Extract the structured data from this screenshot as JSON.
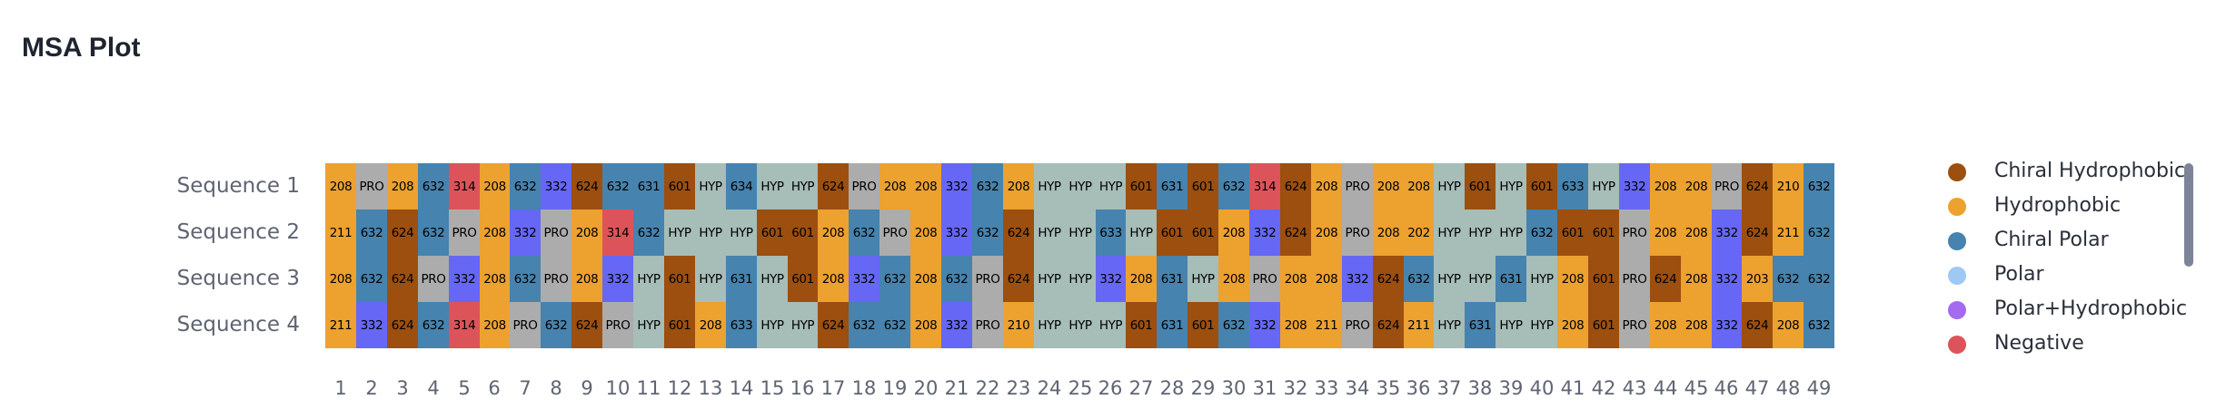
{
  "title": "MSA Plot",
  "legend": [
    {
      "label": "Chiral Hydrophobic",
      "color": "#9c4f0f",
      "icon": "circle-marker"
    },
    {
      "label": "Hydrophobic",
      "color": "#eda12f",
      "icon": "circle-marker"
    },
    {
      "label": "Chiral Polar",
      "color": "#4683ae",
      "icon": "circle-marker"
    },
    {
      "label": "Polar",
      "color": "#9ec9f5",
      "icon": "circle-marker"
    },
    {
      "label": "Polar+Hydrophobic",
      "color": "#a46af0",
      "icon": "circle-marker"
    },
    {
      "label": "Negative",
      "color": "#dc5459",
      "icon": "circle-marker"
    }
  ],
  "colors": {
    "208": "#eda12f",
    "210": "#eda12f",
    "211": "#eda12f",
    "202": "#eda12f",
    "203": "#eda12f",
    "PRO": "#acacac",
    "632": "#4683ae",
    "631": "#4683ae",
    "633": "#4683ae",
    "634": "#4683ae",
    "314": "#dc5459",
    "332": "#6667f5",
    "624": "#9c4f0f",
    "601": "#9c4f0f",
    "HYP": "#a6bdb8",
    "default": "#cccccc"
  },
  "chart_data": {
    "type": "heatmap",
    "title": "MSA Plot",
    "rows": [
      "Sequence 1",
      "Sequence 2",
      "Sequence 3",
      "Sequence 4"
    ],
    "columns": [
      1,
      2,
      3,
      4,
      5,
      6,
      7,
      8,
      9,
      10,
      11,
      12,
      13,
      14,
      15,
      16,
      17,
      18,
      19,
      20,
      21,
      22,
      23,
      24,
      25,
      26,
      27,
      28,
      29,
      30,
      31,
      32,
      33,
      34,
      35,
      36,
      37,
      38,
      39,
      40,
      41,
      42,
      43,
      44,
      45,
      46,
      47,
      48,
      49
    ],
    "values": [
      [
        "208",
        "PRO",
        "208",
        "632",
        "314",
        "208",
        "632",
        "332",
        "624",
        "632",
        "631",
        "601",
        "HYP",
        "634",
        "HYP",
        "HYP",
        "624",
        "PRO",
        "208",
        "208",
        "332",
        "632",
        "208",
        "HYP",
        "HYP",
        "HYP",
        "601",
        "631",
        "601",
        "632",
        "314",
        "624",
        "208",
        "PRO",
        "208",
        "208",
        "HYP",
        "601",
        "HYP",
        "601",
        "633",
        "HYP",
        "332",
        "208",
        "208",
        "PRO",
        "624",
        "210",
        "632"
      ],
      [
        "211",
        "632",
        "624",
        "632",
        "PRO",
        "208",
        "332",
        "PRO",
        "208",
        "314",
        "632",
        "HYP",
        "HYP",
        "HYP",
        "601",
        "601",
        "208",
        "632",
        "PRO",
        "208",
        "332",
        "632",
        "624",
        "HYP",
        "HYP",
        "633",
        "HYP",
        "601",
        "601",
        "208",
        "332",
        "624",
        "208",
        "PRO",
        "208",
        "202",
        "HYP",
        "HYP",
        "HYP",
        "632",
        "601",
        "601",
        "PRO",
        "208",
        "208",
        "332",
        "624",
        "211",
        "632"
      ],
      [
        "208",
        "632",
        "624",
        "PRO",
        "332",
        "208",
        "632",
        "PRO",
        "208",
        "332",
        "HYP",
        "601",
        "HYP",
        "631",
        "HYP",
        "601",
        "208",
        "332",
        "632",
        "208",
        "632",
        "PRO",
        "624",
        "HYP",
        "HYP",
        "332",
        "208",
        "631",
        "HYP",
        "208",
        "PRO",
        "208",
        "208",
        "332",
        "624",
        "632",
        "HYP",
        "HYP",
        "631",
        "HYP",
        "208",
        "601",
        "PRO",
        "624",
        "208",
        "332",
        "203",
        "632",
        "632"
      ],
      [
        "211",
        "332",
        "624",
        "632",
        "314",
        "208",
        "PRO",
        "632",
        "624",
        "PRO",
        "HYP",
        "601",
        "208",
        "633",
        "HYP",
        "HYP",
        "624",
        "632",
        "632",
        "208",
        "332",
        "PRO",
        "210",
        "HYP",
        "HYP",
        "HYP",
        "601",
        "631",
        "601",
        "632",
        "332",
        "208",
        "211",
        "PRO",
        "624",
        "211",
        "HYP",
        "631",
        "HYP",
        "HYP",
        "208",
        "601",
        "PRO",
        "208",
        "208",
        "332",
        "624",
        "208",
        "632"
      ]
    ],
    "legend_position": "right"
  }
}
